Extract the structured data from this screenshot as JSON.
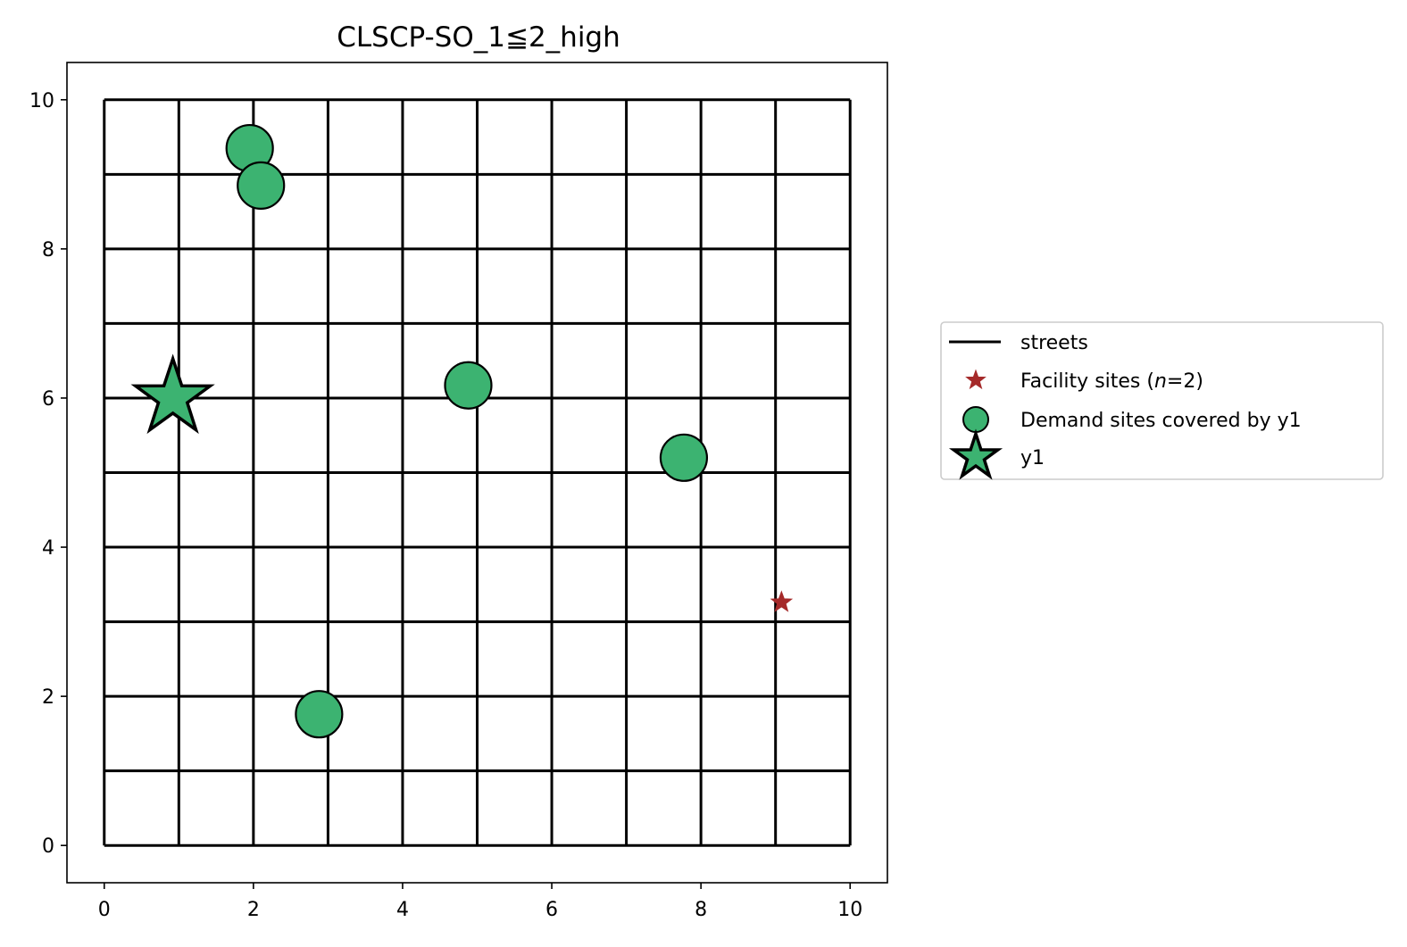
{
  "chart_data": {
    "type": "scatter",
    "title": "CLSCP-SO_1≦2_high",
    "xlabel": "",
    "ylabel": "",
    "xlim": [
      -0.5,
      10.5
    ],
    "ylim": [
      -0.5,
      10.5
    ],
    "x_ticks": [
      "0",
      "2",
      "4",
      "6",
      "8",
      "10"
    ],
    "y_ticks": [
      "0",
      "2",
      "4",
      "6",
      "8",
      "10"
    ],
    "grid": false,
    "streets": {
      "x_lines": [
        0,
        1,
        2,
        3,
        4,
        5,
        6,
        7,
        8,
        9,
        10
      ],
      "y_lines": [
        0,
        1,
        2,
        3,
        4,
        5,
        6,
        7,
        8,
        9,
        10
      ],
      "range": [
        0,
        10
      ],
      "color": "#000000"
    },
    "series": [
      {
        "name": "Facility sites (n=2)",
        "marker": "star",
        "color": "#a52a2a",
        "points": [
          {
            "x": 9.08,
            "y": 3.26
          }
        ]
      },
      {
        "name": "Demand sites covered by y1",
        "marker": "circle",
        "color": "#3cb371",
        "points": [
          {
            "x": 1.95,
            "y": 9.35
          },
          {
            "x": 2.1,
            "y": 8.85
          },
          {
            "x": 4.88,
            "y": 6.17
          },
          {
            "x": 7.77,
            "y": 5.2
          },
          {
            "x": 2.88,
            "y": 1.76
          }
        ]
      },
      {
        "name": "y1",
        "marker": "star",
        "color": "#3cb371",
        "points": [
          {
            "x": 0.92,
            "y": 6.0
          }
        ]
      }
    ],
    "legend": {
      "placement": "right",
      "items": [
        {
          "label_parts": [
            "streets"
          ],
          "marker": "line",
          "color": "#000000"
        },
        {
          "label_parts": [
            "Facility sites (",
            "n",
            "=2)"
          ],
          "marker": "small-star",
          "color": "#a52a2a"
        },
        {
          "label_parts": [
            "Demand sites covered by y1"
          ],
          "marker": "circle",
          "color": "#3cb371"
        },
        {
          "label_parts": [
            "y1"
          ],
          "marker": "big-star",
          "color": "#3cb371"
        }
      ]
    }
  }
}
